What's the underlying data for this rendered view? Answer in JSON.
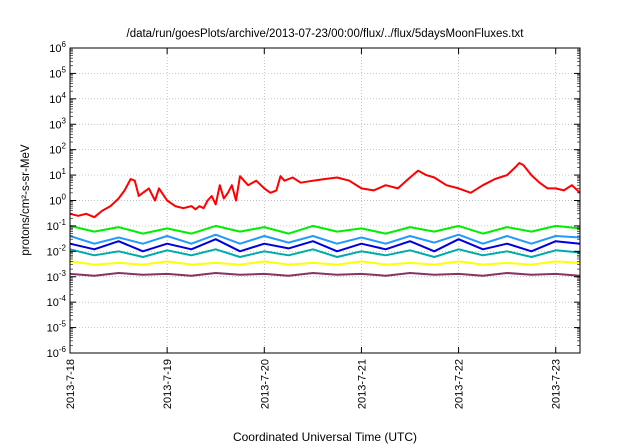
{
  "chart_data": {
    "type": "line",
    "title": "/data/run/goesPlots/archive/2013-07-23/00:00/flux/../flux/5daysMoonFluxes.txt",
    "xlabel": "Coordinated Universal Time (UTC)",
    "ylabel": "protons/cm²-s-sr-MeV",
    "yscale": "log",
    "ylim": [
      1e-06,
      1000000.0
    ],
    "xlim": [
      "2013-7-18",
      "2013-7-23 06:00"
    ],
    "x_ticks": [
      "2013-7-18",
      "2013-7-19",
      "2013-7-20",
      "2013-7-21",
      "2013-7-22",
      "2013-7-23"
    ],
    "y_ticks": [
      "10-6",
      "10-5",
      "10-4",
      "10-3",
      "10-2",
      "10-1",
      "100",
      "101",
      "102",
      "103",
      "104",
      "105",
      "106"
    ],
    "grid": true,
    "colors": {
      "red": "#ff0000",
      "green": "#00ee00",
      "teal": "#00aaaa",
      "blue": "#0000dd",
      "lightblue": "#2299ff",
      "yellow": "#ffff00",
      "purple": "#883366"
    },
    "series": [
      {
        "color": "#ff0000",
        "x": [
          "2013-7-18 00:00",
          "2013-7-18 02:00",
          "2013-7-18 04:00",
          "2013-7-18 06:00",
          "2013-7-18 08:00",
          "2013-7-18 10:00",
          "2013-7-18 12:00",
          "2013-7-18 13:30",
          "2013-7-18 15:00",
          "2013-7-18 16:00",
          "2013-7-18 17:00",
          "2013-7-18 18:00",
          "2013-7-18 19:30",
          "2013-7-18 21:00",
          "2013-7-18 22:00",
          "2013-7-19 00:00",
          "2013-7-19 02:00",
          "2013-7-19 04:00",
          "2013-7-19 06:00",
          "2013-7-19 07:00",
          "2013-7-19 08:00",
          "2013-7-19 09:00",
          "2013-7-19 10:00",
          "2013-7-19 11:00",
          "2013-7-19 12:00",
          "2013-7-19 13:00",
          "2013-7-19 14:00",
          "2013-7-19 15:00",
          "2013-7-19 16:00",
          "2013-7-19 17:00",
          "2013-7-19 18:00",
          "2013-7-19 20:00",
          "2013-7-19 22:00",
          "2013-7-20 00:00",
          "2013-7-20 01:30",
          "2013-7-20 03:00",
          "2013-7-20 04:00",
          "2013-7-20 05:00",
          "2013-7-20 07:00",
          "2013-7-20 09:00",
          "2013-7-20 12:00",
          "2013-7-20 15:00",
          "2013-7-20 18:00",
          "2013-7-20 21:00",
          "2013-7-21 00:00",
          "2013-7-21 03:00",
          "2013-7-21 06:00",
          "2013-7-21 09:00",
          "2013-7-21 12:00",
          "2013-7-21 14:00",
          "2013-7-21 16:00",
          "2013-7-21 18:00",
          "2013-7-21 21:00",
          "2013-7-22 00:00",
          "2013-7-22 03:00",
          "2013-7-22 06:00",
          "2013-7-22 09:00",
          "2013-7-22 12:00",
          "2013-7-22 14:00",
          "2013-7-22 15:00",
          "2013-7-22 16:00",
          "2013-7-22 18:00",
          "2013-7-22 20:00",
          "2013-7-22 22:00",
          "2013-7-23 00:00",
          "2013-7-23 02:00",
          "2013-7-23 04:00",
          "2013-7-23 06:00"
        ],
        "y": [
          0.3,
          0.25,
          0.3,
          0.22,
          0.4,
          0.6,
          1.2,
          2.5,
          7,
          6,
          1.5,
          2,
          3,
          1,
          3,
          1,
          0.6,
          0.5,
          0.6,
          0.45,
          0.6,
          0.5,
          1,
          1.5,
          0.7,
          4,
          1.2,
          2,
          4,
          1,
          9,
          4,
          6,
          3,
          2,
          2.5,
          9,
          6,
          8,
          5,
          6,
          7,
          8,
          6,
          3,
          2.5,
          4,
          3,
          8,
          15,
          10,
          8,
          4,
          3,
          2,
          4,
          7,
          10,
          20,
          30,
          25,
          10,
          5,
          3,
          3,
          2.5,
          4,
          2
        ]
      },
      {
        "color": "#00ee00",
        "x": [
          "2013-7-18 00:00",
          "2013-7-18 06:00",
          "2013-7-18 12:00",
          "2013-7-18 18:00",
          "2013-7-19 00:00",
          "2013-7-19 06:00",
          "2013-7-19 12:00",
          "2013-7-19 18:00",
          "2013-7-20 00:00",
          "2013-7-20 06:00",
          "2013-7-20 12:00",
          "2013-7-20 18:00",
          "2013-7-21 00:00",
          "2013-7-21 06:00",
          "2013-7-21 12:00",
          "2013-7-21 18:00",
          "2013-7-22 00:00",
          "2013-7-22 06:00",
          "2013-7-22 12:00",
          "2013-7-22 18:00",
          "2013-7-23 00:00",
          "2013-7-23 06:00"
        ],
        "y": [
          0.1,
          0.06,
          0.09,
          0.05,
          0.08,
          0.05,
          0.1,
          0.06,
          0.09,
          0.05,
          0.1,
          0.06,
          0.08,
          0.05,
          0.09,
          0.06,
          0.1,
          0.05,
          0.09,
          0.06,
          0.1,
          0.08
        ]
      },
      {
        "color": "#00aaaa",
        "x": [
          "2013-7-18 00:00",
          "2013-7-18 06:00",
          "2013-7-18 12:00",
          "2013-7-18 18:00",
          "2013-7-19 00:00",
          "2013-7-19 06:00",
          "2013-7-19 12:00",
          "2013-7-19 18:00",
          "2013-7-20 00:00",
          "2013-7-20 06:00",
          "2013-7-20 12:00",
          "2013-7-20 18:00",
          "2013-7-21 00:00",
          "2013-7-21 06:00",
          "2013-7-21 12:00",
          "2013-7-21 18:00",
          "2013-7-22 00:00",
          "2013-7-22 06:00",
          "2013-7-22 12:00",
          "2013-7-22 18:00",
          "2013-7-23 00:00",
          "2013-7-23 06:00"
        ],
        "y": [
          0.012,
          0.007,
          0.01,
          0.006,
          0.011,
          0.007,
          0.012,
          0.006,
          0.01,
          0.007,
          0.012,
          0.006,
          0.01,
          0.007,
          0.011,
          0.006,
          0.012,
          0.007,
          0.01,
          0.006,
          0.011,
          0.009
        ]
      },
      {
        "color": "#0000dd",
        "x": [
          "2013-7-18 00:00",
          "2013-7-18 06:00",
          "2013-7-18 12:00",
          "2013-7-18 18:00",
          "2013-7-19 00:00",
          "2013-7-19 06:00",
          "2013-7-19 12:00",
          "2013-7-19 18:00",
          "2013-7-20 00:00",
          "2013-7-20 06:00",
          "2013-7-20 12:00",
          "2013-7-20 18:00",
          "2013-7-21 00:00",
          "2013-7-21 06:00",
          "2013-7-21 12:00",
          "2013-7-21 18:00",
          "2013-7-22 00:00",
          "2013-7-22 06:00",
          "2013-7-22 12:00",
          "2013-7-22 18:00",
          "2013-7-23 00:00",
          "2013-7-23 06:00"
        ],
        "y": [
          0.02,
          0.012,
          0.025,
          0.01,
          0.02,
          0.012,
          0.03,
          0.01,
          0.02,
          0.013,
          0.025,
          0.01,
          0.02,
          0.012,
          0.025,
          0.01,
          0.03,
          0.012,
          0.02,
          0.01,
          0.025,
          0.02
        ]
      },
      {
        "color": "#2299ff",
        "x": [
          "2013-7-18 00:00",
          "2013-7-18 06:00",
          "2013-7-18 12:00",
          "2013-7-18 18:00",
          "2013-7-19 00:00",
          "2013-7-19 06:00",
          "2013-7-19 12:00",
          "2013-7-19 18:00",
          "2013-7-20 00:00",
          "2013-7-20 06:00",
          "2013-7-20 12:00",
          "2013-7-20 18:00",
          "2013-7-21 00:00",
          "2013-7-21 06:00",
          "2013-7-21 12:00",
          "2013-7-21 18:00",
          "2013-7-22 00:00",
          "2013-7-22 06:00",
          "2013-7-22 12:00",
          "2013-7-22 18:00",
          "2013-7-23 00:00",
          "2013-7-23 06:00"
        ],
        "y": [
          0.04,
          0.02,
          0.035,
          0.02,
          0.04,
          0.02,
          0.045,
          0.02,
          0.04,
          0.022,
          0.04,
          0.02,
          0.035,
          0.02,
          0.04,
          0.022,
          0.045,
          0.02,
          0.04,
          0.02,
          0.04,
          0.035
        ]
      },
      {
        "color": "#ffff00",
        "x": [
          "2013-7-18 00:00",
          "2013-7-18 06:00",
          "2013-7-18 12:00",
          "2013-7-18 18:00",
          "2013-7-19 00:00",
          "2013-7-19 06:00",
          "2013-7-19 12:00",
          "2013-7-19 18:00",
          "2013-7-20 00:00",
          "2013-7-20 06:00",
          "2013-7-20 12:00",
          "2013-7-20 18:00",
          "2013-7-21 00:00",
          "2013-7-21 06:00",
          "2013-7-21 12:00",
          "2013-7-21 18:00",
          "2013-7-22 00:00",
          "2013-7-22 06:00",
          "2013-7-22 12:00",
          "2013-7-22 18:00",
          "2013-7-23 00:00",
          "2013-7-23 06:00"
        ],
        "y": [
          0.004,
          0.003,
          0.0035,
          0.003,
          0.004,
          0.003,
          0.0035,
          0.003,
          0.004,
          0.003,
          0.0035,
          0.003,
          0.004,
          0.003,
          0.0035,
          0.003,
          0.004,
          0.003,
          0.0035,
          0.003,
          0.004,
          0.0035
        ]
      },
      {
        "color": "#883366",
        "x": [
          "2013-7-18 00:00",
          "2013-7-18 06:00",
          "2013-7-18 12:00",
          "2013-7-18 18:00",
          "2013-7-19 00:00",
          "2013-7-19 06:00",
          "2013-7-19 12:00",
          "2013-7-19 18:00",
          "2013-7-20 00:00",
          "2013-7-20 06:00",
          "2013-7-20 12:00",
          "2013-7-20 18:00",
          "2013-7-21 00:00",
          "2013-7-21 06:00",
          "2013-7-21 12:00",
          "2013-7-21 18:00",
          "2013-7-22 00:00",
          "2013-7-22 06:00",
          "2013-7-22 12:00",
          "2013-7-22 18:00",
          "2013-7-23 00:00",
          "2013-7-23 06:00"
        ],
        "y": [
          0.0013,
          0.0011,
          0.0014,
          0.0012,
          0.0013,
          0.0011,
          0.0014,
          0.0012,
          0.0013,
          0.0011,
          0.0014,
          0.0012,
          0.0013,
          0.0011,
          0.0014,
          0.0012,
          0.0013,
          0.0011,
          0.0014,
          0.0012,
          0.0013,
          0.0011
        ]
      }
    ]
  }
}
